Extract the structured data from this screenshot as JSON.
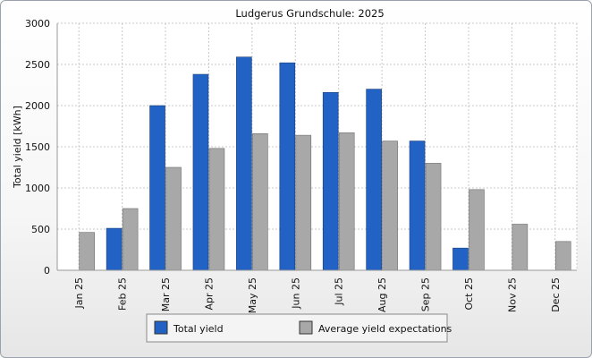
{
  "chart_data": {
    "type": "bar",
    "title": "Ludgerus Grundschule: 2025",
    "xlabel": "",
    "ylabel": "Total yield [kWh]",
    "ylim": [
      0,
      3000
    ],
    "yticks": [
      0,
      500,
      1000,
      1500,
      2000,
      2500,
      3000
    ],
    "grid": true,
    "categories": [
      "Jan 25",
      "Feb 25",
      "Mar 25",
      "Apr 25",
      "May 25",
      "Jun 25",
      "Jul 25",
      "Aug 25",
      "Sep 25",
      "Oct 25",
      "Nov 25",
      "Dec 25"
    ],
    "series": [
      {
        "name": "Total yield",
        "color": "#2162c4",
        "values": [
          null,
          510,
          2000,
          2380,
          2590,
          2520,
          2160,
          2200,
          1570,
          270,
          null,
          null
        ]
      },
      {
        "name": "Average yield expectations",
        "color": "#a8a8a8",
        "values": [
          460,
          750,
          1250,
          1480,
          1660,
          1640,
          1670,
          1570,
          1300,
          980,
          560,
          350
        ]
      }
    ],
    "legend_position": "bottom"
  }
}
